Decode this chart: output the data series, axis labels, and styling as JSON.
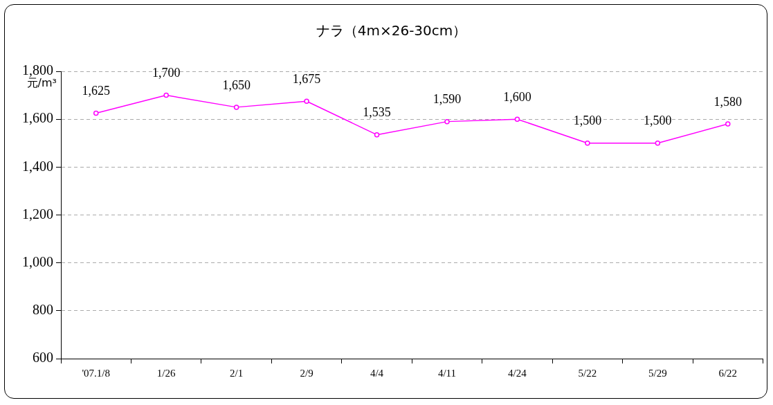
{
  "chart_data": {
    "type": "line",
    "title": "ナラ（4m×26-30cm）",
    "ylabel": "元/m³",
    "categories": [
      "'07.1/8",
      "1/26",
      "2/1",
      "2/9",
      "4/4",
      "4/11",
      "4/24",
      "5/22",
      "5/29",
      "6/22"
    ],
    "series": [
      {
        "color": "#ff00ff",
        "values": [
          1625,
          1700,
          1650,
          1675,
          1535,
          1590,
          1600,
          1500,
          1500,
          1580
        ],
        "value_labels": [
          "1,625",
          "1,700",
          "1,650",
          "1,675",
          "1,535",
          "1,590",
          "1,600",
          "1,500",
          "1,500",
          "1,580"
        ]
      }
    ],
    "ylim": [
      600,
      1800
    ],
    "yticks": [
      600,
      800,
      {
        "value": 1000,
        "label": "1,000"
      },
      {
        "value": 1200,
        "label": "1,200"
      },
      {
        "value": 1400,
        "label": "1,400"
      },
      {
        "value": 1600,
        "label": "1,600"
      },
      {
        "value": 1800,
        "label": "1,800"
      }
    ],
    "grid": "y",
    "legend": false,
    "marker": "circle",
    "line_style": "solid"
  }
}
